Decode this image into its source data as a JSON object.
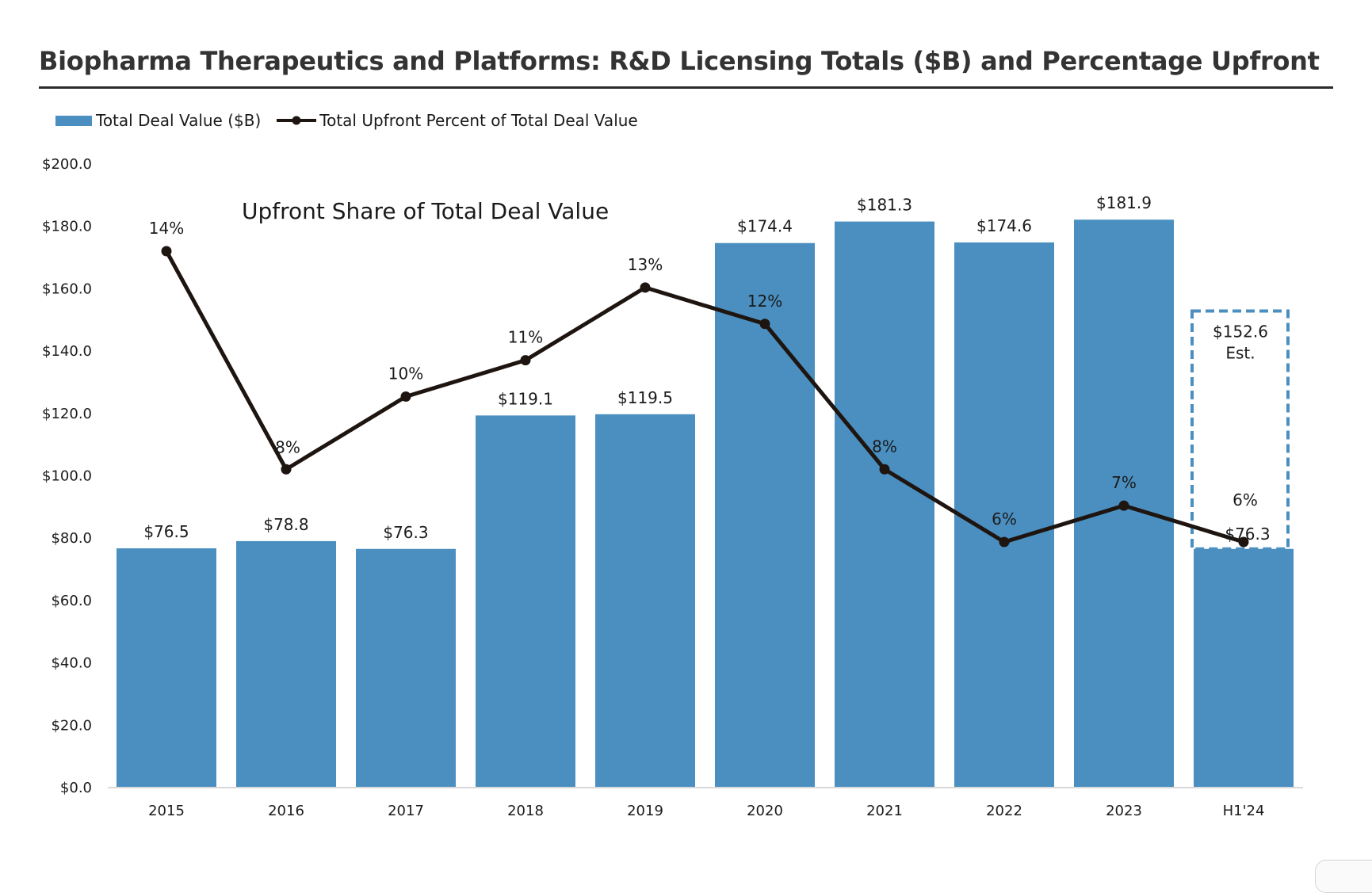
{
  "title": "Biopharma Therapeutics and Platforms: R&D Licensing Totals ($B) and Percentage Upfront",
  "legend": {
    "bar_label": "Total Deal Value ($B)",
    "line_label": "Total Upfront Percent of Total Deal Value"
  },
  "annotation": "Upfront Share of Total Deal Value",
  "colors": {
    "bar": "#4a8fc0",
    "line": "#1e1510",
    "estimate_box": "#4a8fc0"
  },
  "chart_data": {
    "type": "bar",
    "title": "Biopharma Therapeutics and Platforms: R&D Licensing Totals ($B) and Percentage Upfront",
    "categories": [
      "2015",
      "2016",
      "2017",
      "2018",
      "2019",
      "2020",
      "2021",
      "2022",
      "2023",
      "H1'24"
    ],
    "ylim": [
      0,
      200
    ],
    "yticks": [
      0,
      20,
      40,
      60,
      80,
      100,
      120,
      140,
      160,
      180,
      200
    ],
    "ytick_labels": [
      "$0.0",
      "$20.0",
      "$40.0",
      "$60.0",
      "$80.0",
      "$100.0",
      "$120.0",
      "$140.0",
      "$160.0",
      "$180.0",
      "$200.0"
    ],
    "grid": false,
    "legend_position": "top-left",
    "series": [
      {
        "name": "Total Deal Value ($B)",
        "type": "bar",
        "values": [
          76.5,
          78.8,
          76.3,
          119.1,
          119.5,
          174.4,
          181.3,
          174.6,
          181.9,
          76.3
        ],
        "labels": [
          "$76.5",
          "$78.8",
          "$76.3",
          "$119.1",
          "$119.5",
          "$174.4",
          "$181.3",
          "$174.6",
          "$181.9",
          "$76.3"
        ]
      },
      {
        "name": "Total Upfront Percent of Total Deal Value",
        "type": "line",
        "values": [
          14,
          8,
          10,
          11,
          13,
          12,
          8,
          6,
          7,
          6
        ],
        "labels": [
          "14%",
          "8%",
          "10%",
          "11%",
          "13%",
          "12%",
          "8%",
          "6%",
          "7%",
          "6%"
        ]
      }
    ],
    "estimate": {
      "category": "H1'24",
      "value": 152.6,
      "label_value": "$152.6",
      "label_note": "Est."
    }
  }
}
